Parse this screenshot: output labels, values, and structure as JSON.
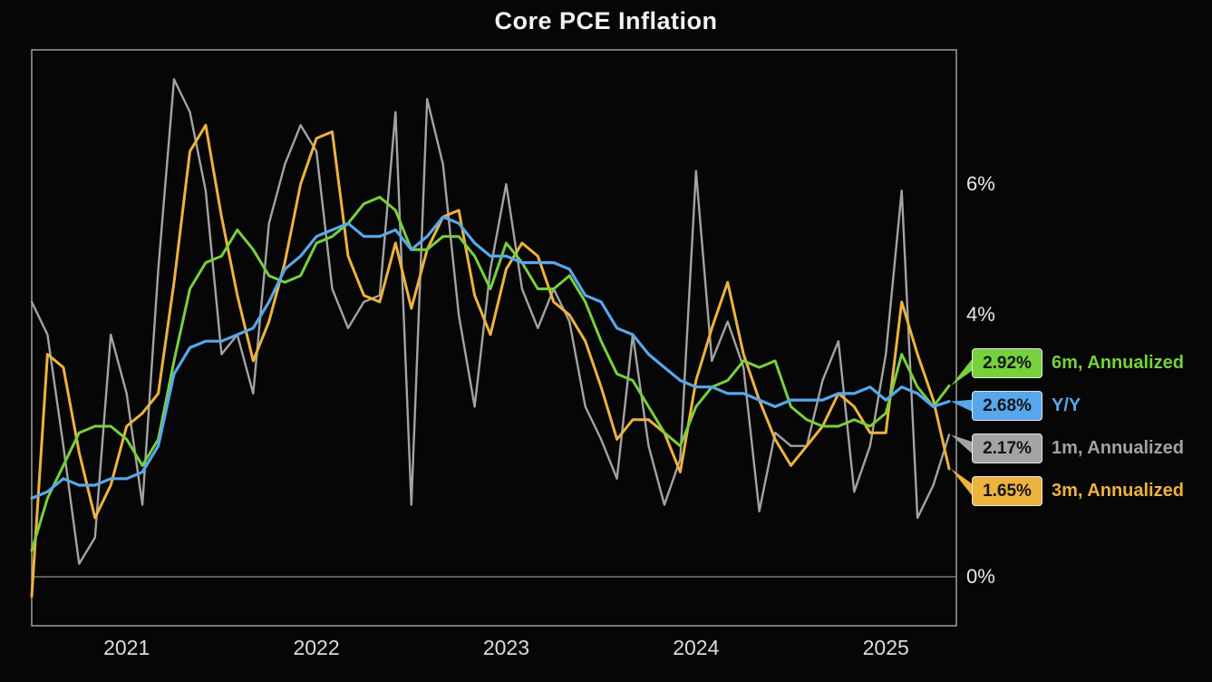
{
  "title": "Core PCE Inflation",
  "colors": {
    "background": "#060606",
    "plot_border": "#a8a8a8",
    "zero_line": "#8c8c8c",
    "axis_text": "#e8e8e8",
    "title_text": "#f2f2f2",
    "badge_text": "#141414"
  },
  "chart_data": {
    "type": "line",
    "title": "Core PCE Inflation",
    "frequency": "monthly",
    "x_range": [
      "2020-07",
      "2025-05"
    ],
    "x_ticks": [
      {
        "label": "2021",
        "month_index": 6
      },
      {
        "label": "2022",
        "month_index": 18
      },
      {
        "label": "2023",
        "month_index": 30
      },
      {
        "label": "2024",
        "month_index": 42
      },
      {
        "label": "2025",
        "month_index": 54
      }
    ],
    "y_ticks": [
      {
        "label": "6%",
        "value": 6
      },
      {
        "label": "4%",
        "value": 4
      },
      {
        "label": "0%",
        "value": 0
      }
    ],
    "ylim": [
      -0.75,
      8.05
    ],
    "grid": false,
    "legend_position": "right-outside",
    "series": [
      {
        "name": "1m, Annualized",
        "color": "#a3a3a3",
        "latest": 2.17,
        "latest_label": "2.17%",
        "values": [
          4.2,
          3.7,
          2.0,
          0.2,
          0.6,
          3.7,
          2.8,
          1.1,
          4.7,
          7.6,
          7.1,
          5.9,
          3.4,
          3.7,
          2.8,
          5.4,
          6.3,
          6.9,
          6.5,
          4.4,
          3.8,
          4.2,
          4.3,
          7.1,
          1.1,
          7.3,
          6.3,
          4.0,
          2.6,
          4.7,
          6.0,
          4.4,
          3.8,
          4.4,
          3.9,
          2.6,
          2.1,
          1.5,
          3.7,
          2.0,
          1.1,
          1.8,
          6.2,
          3.3,
          3.9,
          3.2,
          1.0,
          2.2,
          2.0,
          2.0,
          3.0,
          3.6,
          1.3,
          2.0,
          3.4,
          5.9,
          0.9,
          1.4,
          2.17
        ]
      },
      {
        "name": "3m, Annualized",
        "color": "#edb33e",
        "latest": 1.65,
        "latest_label": "1.65%",
        "values": [
          -0.3,
          3.4,
          3.2,
          1.9,
          0.9,
          1.4,
          2.3,
          2.5,
          2.8,
          4.5,
          6.5,
          6.9,
          5.5,
          4.3,
          3.3,
          3.9,
          4.8,
          6.0,
          6.7,
          6.8,
          4.9,
          4.3,
          4.2,
          5.1,
          4.1,
          5.0,
          5.5,
          5.6,
          4.3,
          3.7,
          4.7,
          5.1,
          4.9,
          4.2,
          4.0,
          3.6,
          2.9,
          2.1,
          2.4,
          2.4,
          2.2,
          1.6,
          3.0,
          3.8,
          4.5,
          3.4,
          2.7,
          2.1,
          1.7,
          2.0,
          2.3,
          2.8,
          2.6,
          2.2,
          2.2,
          4.2,
          3.4,
          2.7,
          1.65
        ]
      },
      {
        "name": "6m, Annualized",
        "color": "#76d13d",
        "latest": 2.92,
        "latest_label": "2.92%",
        "values": [
          0.4,
          1.2,
          1.7,
          2.2,
          2.3,
          2.3,
          2.1,
          1.7,
          2.1,
          3.3,
          4.4,
          4.8,
          4.9,
          5.3,
          5.0,
          4.6,
          4.5,
          4.6,
          5.1,
          5.2,
          5.4,
          5.7,
          5.8,
          5.6,
          5.0,
          5.0,
          5.2,
          5.2,
          4.9,
          4.4,
          5.1,
          4.8,
          4.4,
          4.4,
          4.6,
          4.2,
          3.6,
          3.1,
          3.0,
          2.6,
          2.2,
          2.0,
          2.6,
          2.9,
          3.0,
          3.3,
          3.2,
          3.3,
          2.6,
          2.4,
          2.3,
          2.3,
          2.4,
          2.3,
          2.5,
          3.4,
          2.9,
          2.6,
          2.92
        ]
      },
      {
        "name": "Y/Y",
        "color": "#57a7ec",
        "latest": 2.68,
        "latest_label": "2.68%",
        "values": [
          1.2,
          1.3,
          1.5,
          1.4,
          1.4,
          1.5,
          1.5,
          1.6,
          2.0,
          3.1,
          3.5,
          3.6,
          3.6,
          3.7,
          3.8,
          4.2,
          4.7,
          4.9,
          5.2,
          5.3,
          5.4,
          5.2,
          5.2,
          5.3,
          5.0,
          5.2,
          5.5,
          5.4,
          5.1,
          4.9,
          4.9,
          4.8,
          4.8,
          4.8,
          4.7,
          4.3,
          4.2,
          3.8,
          3.7,
          3.4,
          3.2,
          3.0,
          2.9,
          2.9,
          2.8,
          2.8,
          2.7,
          2.6,
          2.7,
          2.7,
          2.7,
          2.8,
          2.8,
          2.9,
          2.7,
          2.9,
          2.8,
          2.6,
          2.68
        ]
      }
    ]
  }
}
